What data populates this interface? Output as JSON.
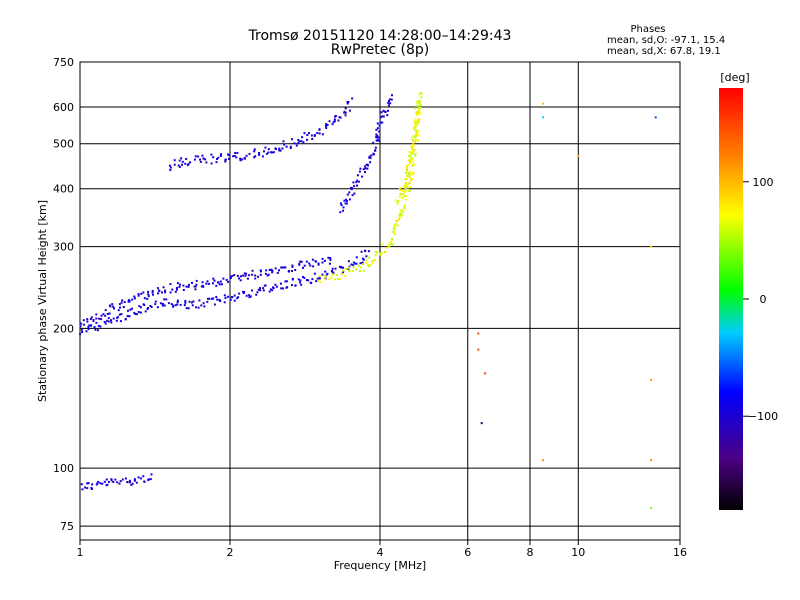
{
  "chart_data": {
    "type": "scatter",
    "title": "Tromsø 20151120 14:28:00–14:29:43",
    "subtitle": "RwPretec (8p)",
    "xlabel": "Frequency [MHz]",
    "ylabel": "Stationary phase Virtual Height [km]",
    "x_scale": "log",
    "y_scale": "log",
    "xlim": [
      1,
      16
    ],
    "ylim": [
      70,
      750
    ],
    "xticks": [
      1,
      2,
      4,
      6,
      8,
      10,
      16
    ],
    "yticks": [
      75,
      100,
      200,
      300,
      400,
      500,
      600,
      750
    ],
    "grid": true,
    "legend": {
      "title": "Phases",
      "line_o": "mean, sd,O: -97.1, 15.4",
      "line_x": "mean, sd,X:  67.8, 19.1"
    },
    "colorbar": {
      "label": "[deg]",
      "range": [
        -180,
        180
      ],
      "ticks": [
        100,
        0,
        -100
      ]
    },
    "series": [
      {
        "mode": "O",
        "phase_mean_deg": -97.1,
        "phase_sd_deg": 15.4,
        "traces": [
          {
            "x": [
              1.0,
              1.05,
              1.1,
              1.2,
              1.3,
              1.4
            ],
            "y": [
              92,
              92,
              93,
              94,
              95,
              96
            ]
          },
          {
            "x": [
              1.0,
              1.05,
              1.1,
              1.2,
              1.3,
              1.4,
              1.5,
              1.6,
              1.8,
              2.0,
              2.2,
              2.5,
              2.8,
              3.0,
              3.3,
              3.6,
              3.8
            ],
            "y": [
              197,
              200,
              205,
              212,
              220,
              226,
              228,
              225,
              228,
              235,
              240,
              248,
              255,
              260,
              268,
              280,
              295
            ]
          },
          {
            "x": [
              1.0,
              1.1,
              1.2,
              1.3,
              1.4,
              1.5,
              1.6,
              1.8,
              2.0,
              2.2,
              2.5,
              2.8,
              3.0,
              3.2
            ],
            "y": [
              205,
              215,
              225,
              235,
              240,
              245,
              248,
              250,
              258,
              262,
              270,
              275,
              278,
              280
            ]
          },
          {
            "x": [
              1.5,
              1.6,
              1.7,
              1.8,
              1.9,
              2.0,
              2.3,
              2.6,
              3.0,
              3.3,
              3.5
            ],
            "y": [
              450,
              458,
              462,
              465,
              468,
              470,
              480,
              500,
              530,
              570,
              620
            ]
          },
          {
            "x": [
              3.3,
              3.5,
              3.7,
              3.9,
              4.0,
              4.1,
              4.2
            ],
            "y": [
              360,
              400,
              440,
              500,
              560,
              600,
              640
            ]
          }
        ]
      },
      {
        "mode": "X",
        "phase_mean_deg": 67.8,
        "phase_sd_deg": 19.1,
        "traces": [
          {
            "x": [
              3.0,
              3.3,
              3.6,
              3.9,
              4.2,
              4.4,
              4.6,
              4.7,
              4.75
            ],
            "y": [
              255,
              262,
              270,
              285,
              310,
              360,
              430,
              520,
              640
            ]
          },
          {
            "x": [
              4.3,
              4.5,
              4.6,
              4.7,
              4.75,
              4.8
            ],
            "y": [
              370,
              420,
              480,
              540,
              600,
              650
            ]
          }
        ]
      }
    ],
    "scattered_points": [
      {
        "x": 6.3,
        "y": 195,
        "phase_deg": 150
      },
      {
        "x": 6.3,
        "y": 180,
        "phase_deg": 150
      },
      {
        "x": 6.5,
        "y": 160,
        "phase_deg": 150
      },
      {
        "x": 6.4,
        "y": 125,
        "phase_deg": -150
      },
      {
        "x": 8.5,
        "y": 610,
        "phase_deg": 100
      },
      {
        "x": 8.5,
        "y": 570,
        "phase_deg": -30
      },
      {
        "x": 10.0,
        "y": 470,
        "phase_deg": 100
      },
      {
        "x": 8.5,
        "y": 104,
        "phase_deg": 120
      },
      {
        "x": 14.3,
        "y": 570,
        "phase_deg": -60
      },
      {
        "x": 14.0,
        "y": 300,
        "phase_deg": 90
      },
      {
        "x": 14.0,
        "y": 155,
        "phase_deg": 110
      },
      {
        "x": 14.0,
        "y": 104,
        "phase_deg": 120
      },
      {
        "x": 14.0,
        "y": 82,
        "phase_deg": 40
      }
    ]
  }
}
